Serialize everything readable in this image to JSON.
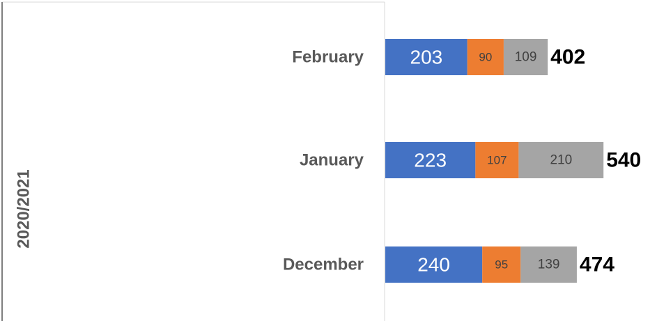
{
  "chart_data": {
    "type": "bar",
    "orientation": "horizontal",
    "stacked": true,
    "group_label": "2020/2021",
    "categories": [
      "February",
      "January",
      "December"
    ],
    "series": [
      {
        "color": "#4472c4",
        "values": [
          203,
          223,
          240
        ]
      },
      {
        "color": "#ed7d31",
        "values": [
          90,
          107,
          95
        ]
      },
      {
        "color": "#a5a5a5",
        "values": [
          109,
          210,
          139
        ]
      }
    ],
    "totals": [
      402,
      540,
      474
    ]
  }
}
